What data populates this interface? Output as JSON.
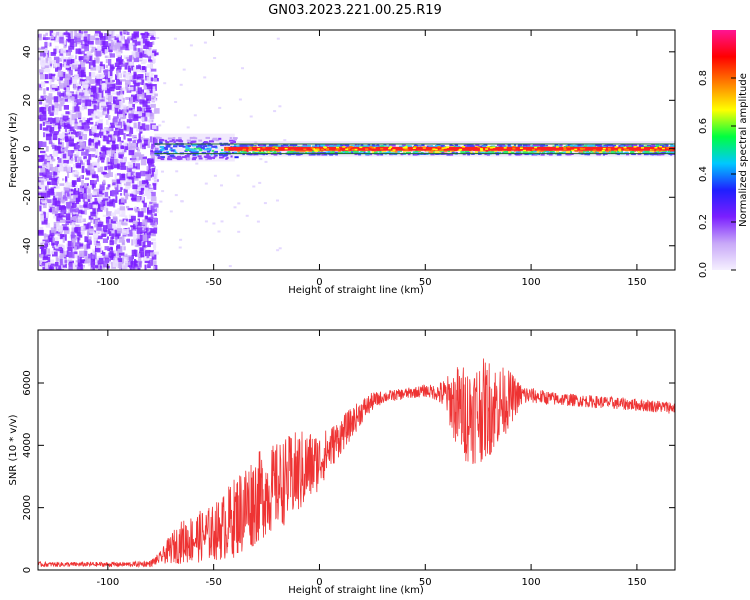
{
  "title": "GN03.2023.221.00.25.R19",
  "colors": {
    "signal": "#ee3333",
    "band": "#1f6a2a",
    "axis": "#000000",
    "colormap": [
      "#f5f0ff",
      "#c8a8f8",
      "#7b1fff",
      "#1f1fff",
      "#00c8ff",
      "#00ff40",
      "#ffff00",
      "#ff8000",
      "#ff0000",
      "#ff1493"
    ]
  },
  "chart_data": [
    {
      "type": "heatmap",
      "title": "GN03.2023.221.00.25.R19",
      "xlabel": "Height of straight line (km)",
      "ylabel": "Frequency (Hz)",
      "xlim": [
        -133,
        168
      ],
      "ylim": [
        -50,
        49
      ],
      "xticks": [
        -100,
        -50,
        0,
        50,
        100,
        150
      ],
      "yticks": [
        -40,
        -20,
        0,
        20,
        40
      ],
      "grid": false,
      "colorbar": {
        "label": "Normalized spectral amplitude",
        "range": [
          0,
          1
        ],
        "ticks": [
          0.0,
          0.2,
          0.4,
          0.6,
          0.8
        ]
      },
      "regions": [
        {
          "x_range": [
            -133,
            -78
          ],
          "freq_range": [
            -50,
            49
          ],
          "amplitude": 0.1
        },
        {
          "x_range": [
            -78,
            -40
          ],
          "freq_range": [
            -4,
            5
          ],
          "amplitude": 0.5
        },
        {
          "x_range": [
            -40,
            168
          ],
          "freq_range": [
            -2,
            2
          ],
          "amplitude": 0.9
        }
      ],
      "signal_band_hz": [
        -2,
        2
      ]
    },
    {
      "type": "line",
      "xlabel": "Height of straight line (km)",
      "ylabel": "SNR (10 * v/v)",
      "xlim": [
        -133,
        168
      ],
      "ylim": [
        0,
        7700
      ],
      "xticks": [
        -100,
        -50,
        0,
        50,
        100,
        150
      ],
      "yticks": [
        0,
        2000,
        4000,
        6000
      ],
      "grid": false,
      "series": [
        {
          "x": [
            -133,
            -110,
            -90,
            -80,
            -75,
            -70,
            -65,
            -60,
            -55,
            -50,
            -45,
            -40,
            -35,
            -30,
            -25,
            -20,
            -15,
            -10,
            -5,
            0,
            5,
            10,
            15,
            20,
            25,
            30,
            35,
            40,
            45,
            50,
            55,
            60,
            65,
            70,
            75,
            80,
            85,
            90,
            95,
            100,
            110,
            120,
            130,
            140,
            150,
            160,
            168
          ],
          "y": [
            180,
            180,
            180,
            200,
            400,
            700,
            900,
            1000,
            1100,
            1200,
            1400,
            1700,
            2000,
            2300,
            2500,
            2700,
            2900,
            3100,
            3300,
            3500,
            3900,
            4300,
            4700,
            5100,
            5400,
            5550,
            5600,
            5650,
            5700,
            5750,
            5700,
            5600,
            5200,
            5000,
            5100,
            5200,
            5300,
            5500,
            5600,
            5600,
            5500,
            5450,
            5400,
            5350,
            5300,
            5250,
            5200
          ],
          "noise": [
            80,
            80,
            80,
            100,
            200,
            500,
            700,
            800,
            850,
            900,
            1100,
            1300,
            1500,
            1500,
            1400,
            1400,
            1400,
            1400,
            1200,
            900,
            700,
            600,
            500,
            400,
            300,
            200,
            180,
            180,
            180,
            200,
            250,
            600,
            1400,
            1600,
            1700,
            1600,
            1300,
            900,
            400,
            250,
            220,
            200,
            200,
            200,
            200,
            200,
            200
          ]
        }
      ]
    }
  ]
}
